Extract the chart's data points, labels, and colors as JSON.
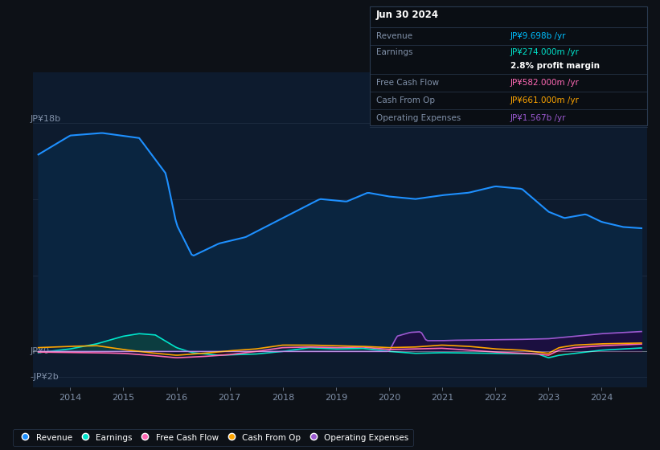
{
  "bg_color": "#0d1117",
  "plot_bg_color": "#0d1b2e",
  "title": "Jun 30 2024",
  "table_rows": [
    {
      "label": "Revenue",
      "value": "JP¥9.698b /yr",
      "vcolor": "#00bfff",
      "extra": null,
      "ecolor": null
    },
    {
      "label": "Earnings",
      "value": "JP¥274.000m /yr",
      "vcolor": "#00e5cc",
      "extra": "2.8% profit margin",
      "ecolor": "#ffffff"
    },
    {
      "label": "Free Cash Flow",
      "value": "JP¥582.000m /yr",
      "vcolor": "#ff69b4",
      "extra": null,
      "ecolor": null
    },
    {
      "label": "Cash From Op",
      "value": "JP¥661.000m /yr",
      "vcolor": "#ffa500",
      "extra": null,
      "ecolor": null
    },
    {
      "label": "Operating Expenses",
      "value": "JP¥1.567b /yr",
      "vcolor": "#9b59d0",
      "extra": null,
      "ecolor": null
    }
  ],
  "ylabel_top": "JP¥18b",
  "ylabel_zero": "JP¥0",
  "ylabel_neg": "-JP¥2b",
  "x_ticks": [
    2014,
    2015,
    2016,
    2017,
    2018,
    2019,
    2020,
    2021,
    2022,
    2023,
    2024
  ],
  "ylim_lo": -2800000000,
  "ylim_hi": 22000000000,
  "xlim_lo": 2013.3,
  "xlim_hi": 2024.85,
  "legend_labels": [
    "Revenue",
    "Earnings",
    "Free Cash Flow",
    "Cash From Op",
    "Operating Expenses"
  ],
  "legend_colors": [
    "#1e90ff",
    "#00e5cc",
    "#ff69b4",
    "#ffa500",
    "#9b59d0"
  ],
  "revenue_color": "#1e90ff",
  "revenue_fill_color": "#0a2540",
  "earnings_pos_fill": "#0d4040",
  "earnings_neg_fill": "#3a1010",
  "earnings_color": "#00e5cc",
  "fcf_color": "#ff69b4",
  "cashop_color": "#ffa500",
  "opex_color": "#9b59d0",
  "opex_fill_color": "#1e0d40",
  "grid_color": "#1e2d42",
  "text_color": "#8090a8",
  "white": "#ffffff",
  "border_color": "#2a3a50",
  "table_bg": "#0a0e14"
}
